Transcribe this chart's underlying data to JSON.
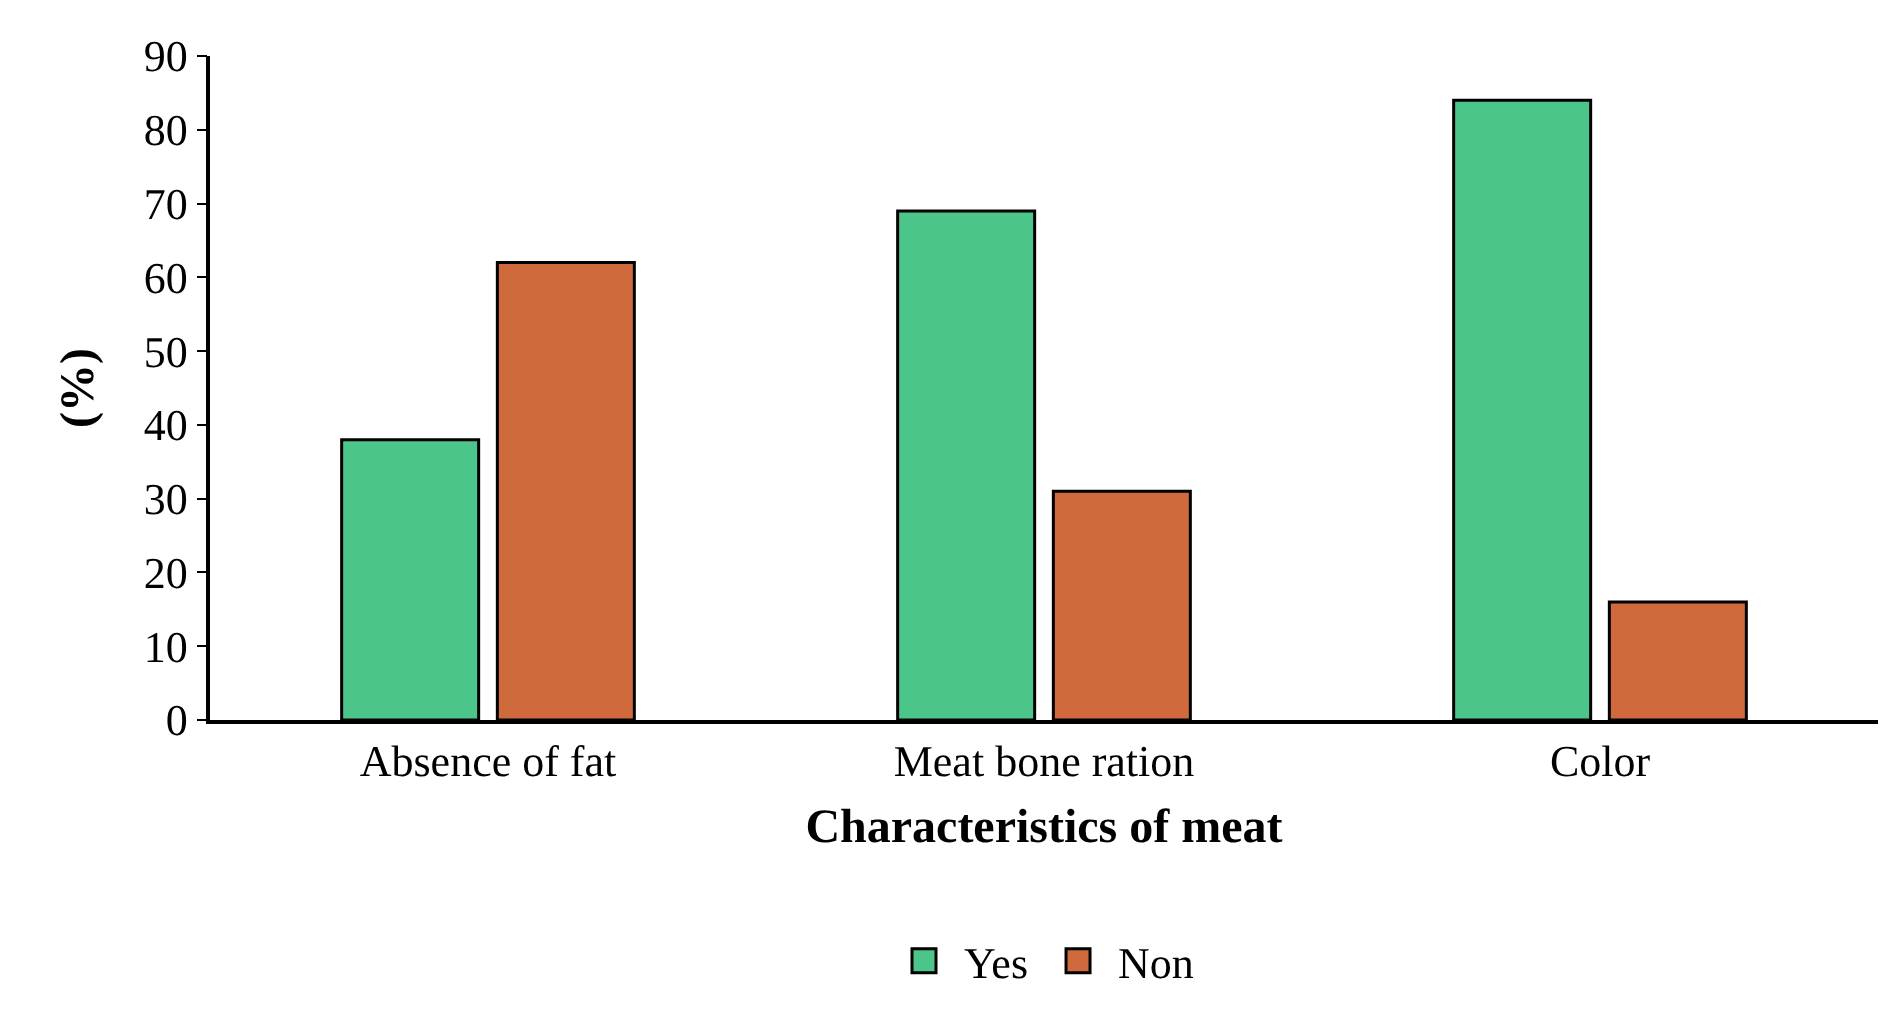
{
  "chart_data": {
    "type": "bar",
    "xlabel": "Characteristics of meat",
    "ylabel": "(%)",
    "categories": [
      "Absence of fat",
      "Meat bone ration",
      "Color"
    ],
    "series": [
      {
        "name": "Yes",
        "color": "#4cc58a",
        "values": [
          38,
          69,
          84
        ]
      },
      {
        "name": "Non",
        "color": "#cf6a3c",
        "values": [
          62,
          31,
          16
        ]
      }
    ],
    "ylim": [
      0,
      90
    ],
    "yticks": [
      0,
      10,
      20,
      30,
      40,
      50,
      60,
      70,
      80,
      90
    ],
    "grid": false,
    "legend": "bottom"
  }
}
